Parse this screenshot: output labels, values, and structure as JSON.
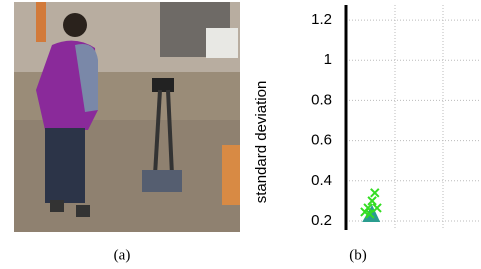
{
  "figure": {
    "captions": [
      "(a)",
      "(b)"
    ]
  },
  "chart_data": {
    "type": "scatter",
    "ylabel": "standard deviation",
    "xlim": [
      0,
      3
    ],
    "ylim": [
      0.155,
      1.275
    ],
    "yticks": [
      {
        "value": 0.2,
        "label": "0.2"
      },
      {
        "value": 0.4,
        "label": "0.4"
      },
      {
        "value": 0.6,
        "label": "0.6"
      },
      {
        "value": 0.8,
        "label": "0.8"
      },
      {
        "value": 1,
        "label": "1"
      },
      {
        "value": 1.2,
        "label": "1.2"
      }
    ],
    "grid": true,
    "series": [
      {
        "color": "#2a9d8f",
        "marker": "area",
        "x": [
          0.36,
          0.58,
          0.76
        ],
        "values": [
          0.195,
          0.28,
          0.195
        ]
      },
      {
        "color": "#33dd22",
        "marker": "x",
        "x": [
          0.64,
          0.58,
          0.49,
          0.42,
          0.69,
          0.53
        ],
        "values": [
          0.34,
          0.3,
          0.265,
          0.245,
          0.265,
          0.235
        ]
      }
    ]
  }
}
